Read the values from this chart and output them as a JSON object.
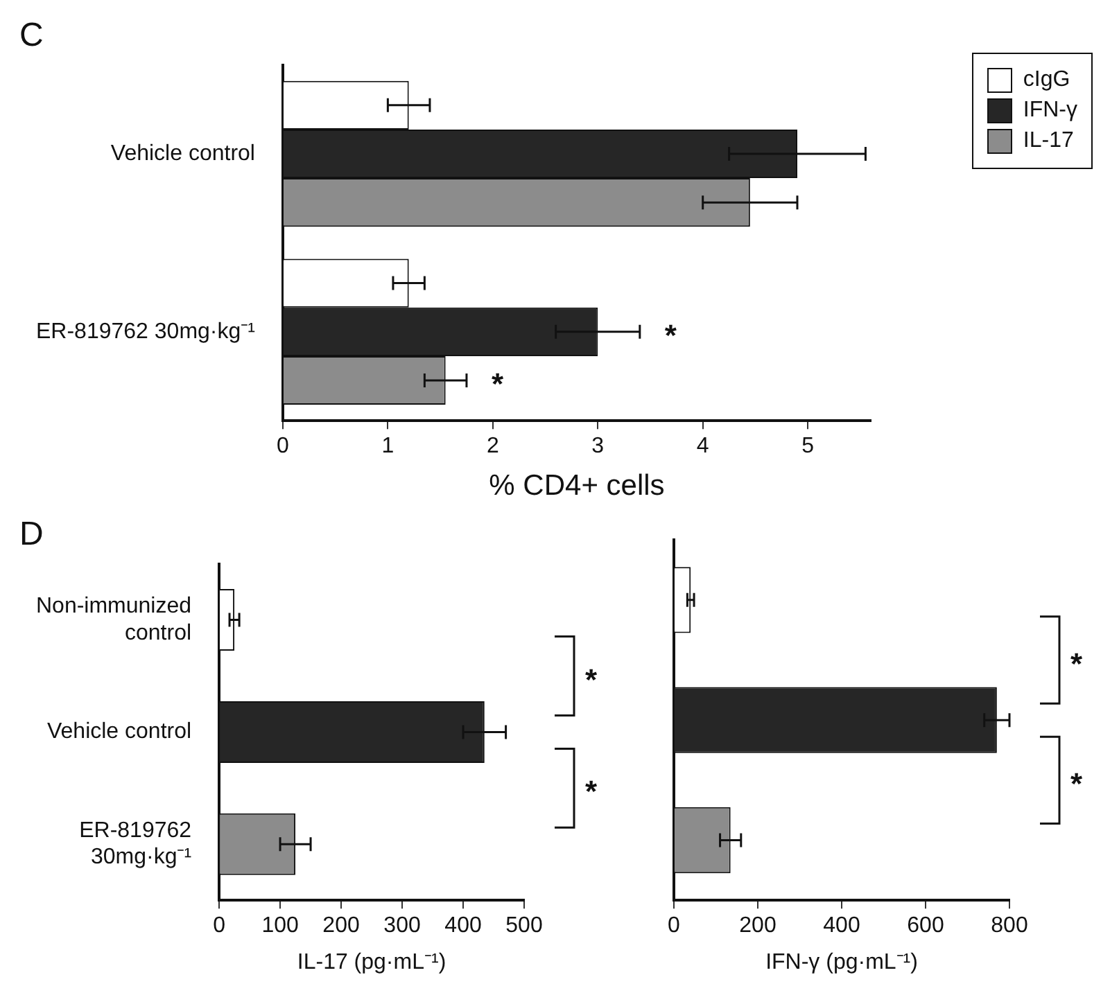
{
  "chart_data": [
    {
      "type": "bar",
      "title": "C",
      "orientation": "horizontal",
      "categories": [
        "Vehicle control",
        "ER-819762 30mg·kg⁻¹"
      ],
      "xlabel": "% CD4+ cells",
      "xlim": [
        0,
        5.6
      ],
      "xticks": [
        0,
        1,
        2,
        3,
        4,
        5
      ],
      "legend": "right",
      "series": [
        {
          "name": "cIgG",
          "color": "#ffffff",
          "values": [
            1.2,
            1.2
          ],
          "errors": [
            0.2,
            0.15
          ]
        },
        {
          "name": "IFN-γ",
          "color": "#262626",
          "values": [
            4.9,
            3.0
          ],
          "errors": [
            0.65,
            0.4
          ]
        },
        {
          "name": "IL-17",
          "color": "#8c8c8c",
          "values": [
            4.45,
            1.55
          ],
          "errors": [
            0.45,
            0.2
          ]
        }
      ],
      "annotations": [
        "*",
        "*"
      ]
    },
    {
      "type": "bar",
      "title": "D",
      "orientation": "horizontal",
      "categories": [
        "Non-immunized\ncontrol",
        "Vehicle control",
        "ER-819762\n30mg·kg⁻¹"
      ],
      "xlabel": "IL-17 (pg·mL⁻¹)",
      "xlim": [
        0,
        500
      ],
      "xticks": [
        0,
        100,
        200,
        300,
        400,
        500
      ],
      "values": [
        25,
        435,
        125
      ],
      "colors": [
        "#ffffff",
        "#262626",
        "#8c8c8c"
      ],
      "errors": [
        8,
        35,
        25
      ],
      "annotations": [
        "*",
        "*"
      ]
    },
    {
      "type": "bar",
      "orientation": "horizontal",
      "categories": [
        null,
        null,
        null
      ],
      "xlabel": "IFN-γ (pg·mL⁻¹)",
      "xlim": [
        0,
        800
      ],
      "xticks": [
        0,
        200,
        400,
        600,
        800
      ],
      "values": [
        40,
        770,
        135
      ],
      "colors": [
        "#ffffff",
        "#262626",
        "#8c8c8c"
      ],
      "errors": [
        8,
        30,
        25
      ],
      "annotations": [
        "*",
        "*"
      ]
    }
  ]
}
